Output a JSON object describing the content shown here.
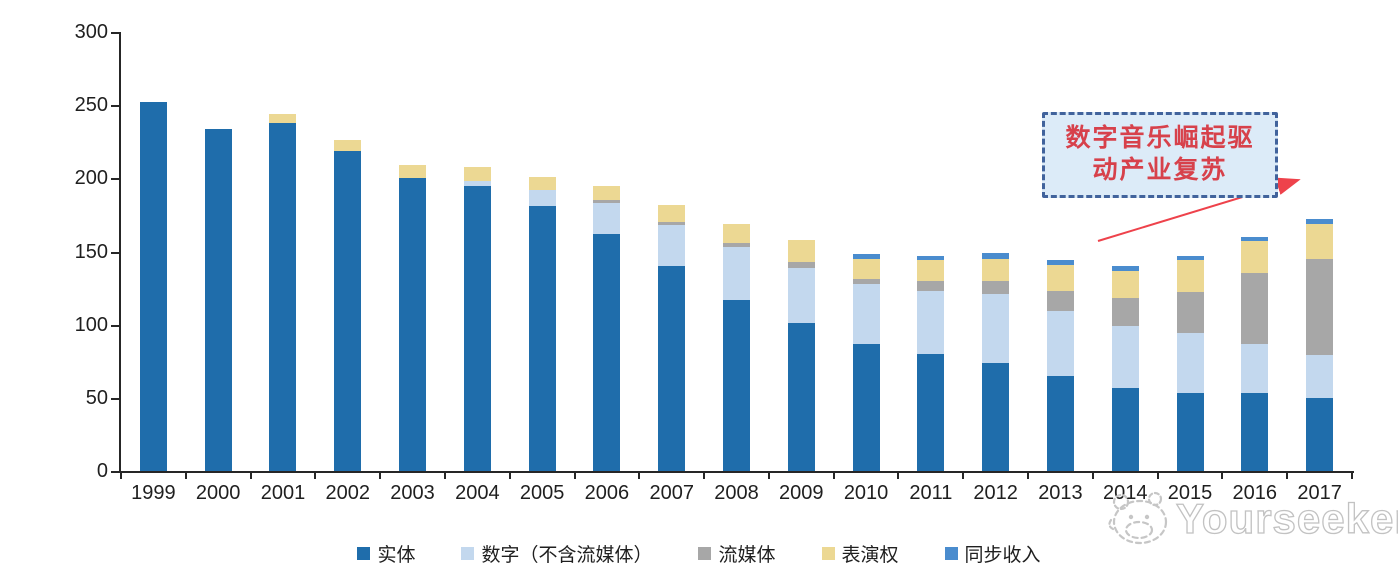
{
  "chart_data": {
    "type": "bar",
    "stacked": true,
    "title": "",
    "xlabel": "",
    "ylabel": "",
    "categories": [
      "1999",
      "2000",
      "2001",
      "2002",
      "2003",
      "2004",
      "2005",
      "2006",
      "2007",
      "2008",
      "2009",
      "2010",
      "2011",
      "2012",
      "2013",
      "2014",
      "2015",
      "2016",
      "2017"
    ],
    "series": [
      {
        "name": "实体",
        "color": "#1f6dab",
        "values": [
          252,
          234,
          238,
          219,
          200,
          195,
          181,
          162,
          140,
          117,
          101,
          87,
          80,
          74,
          65,
          57,
          53,
          53,
          50
        ]
      },
      {
        "name": "数字（不含流媒体）",
        "color": "#c3d8ee",
        "values": [
          0,
          0,
          0,
          0,
          0,
          3,
          11,
          21,
          28,
          36,
          38,
          41,
          43,
          47,
          44,
          42,
          41,
          34,
          29
        ]
      },
      {
        "name": "流媒体",
        "color": "#a7a7a7",
        "values": [
          0,
          0,
          0,
          0,
          0,
          0,
          0,
          2,
          2,
          3,
          4,
          3,
          7,
          9,
          14,
          19,
          28,
          48,
          66
        ]
      },
      {
        "name": "表演权",
        "color": "#ecd893",
        "values": [
          0,
          0,
          6,
          7,
          9,
          10,
          9,
          10,
          12,
          13,
          15,
          14,
          14,
          15,
          18,
          19,
          22,
          22,
          24
        ]
      },
      {
        "name": "同步收入",
        "color": "#4a8cce",
        "values": [
          0,
          0,
          0,
          0,
          0,
          0,
          0,
          0,
          0,
          0,
          0,
          3,
          3,
          4,
          3,
          3,
          3,
          3,
          3
        ]
      }
    ],
    "ylim": [
      0,
      300
    ],
    "yticks": [
      0,
      50,
      100,
      150,
      200,
      250,
      300
    ],
    "grid": false,
    "legend_position": "bottom"
  },
  "annotation": {
    "line1": "数字音乐崛起驱",
    "line2": "动产业复苏",
    "text_color": "#d7414b",
    "box_fill": "#dcebf8",
    "box_border": "#41639c",
    "arrow_color": "#ee424b"
  },
  "watermark": {
    "text": "Yourseeker",
    "icon": "mascot-face-icon",
    "color": "#c2c2c2"
  }
}
